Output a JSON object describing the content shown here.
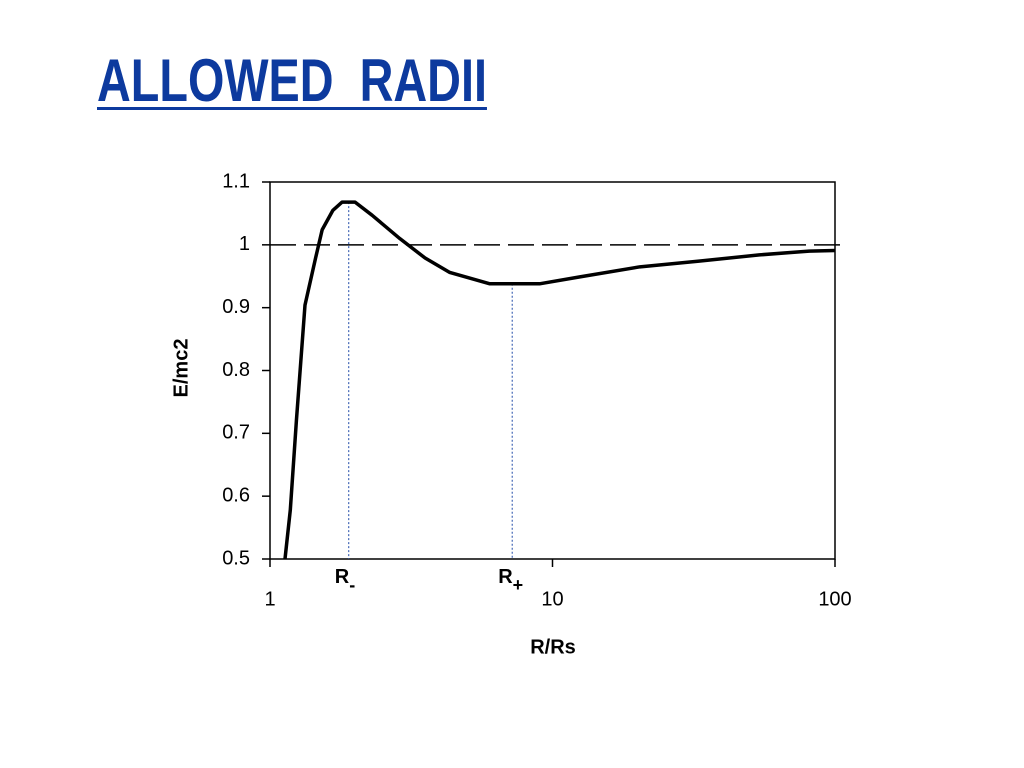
{
  "chart_data": {
    "type": "line",
    "title": "ALLOWED  RADII",
    "x_label": "R/Rs",
    "y_label": "E/mc2",
    "x_log": true,
    "xlim": [
      1,
      100
    ],
    "xticks": [
      1,
      10,
      100
    ],
    "ylim": [
      0.5,
      1.1
    ],
    "yticks": [
      0.5,
      0.6,
      0.7,
      0.8,
      0.9,
      1,
      1.1
    ],
    "reference_y": 1,
    "series": [
      {
        "color": "#000000",
        "x": [
          1.13,
          1.18,
          1.24,
          1.33,
          1.45,
          1.53,
          1.67,
          1.8,
          2.0,
          2.3,
          2.88,
          3.54,
          4.33,
          6.0,
          9.0,
          12.5,
          20.4,
          33,
          54,
          81,
          100
        ],
        "values": [
          0.5,
          0.578,
          0.72,
          0.904,
          0.979,
          1.024,
          1.055,
          1.068,
          1.068,
          1.047,
          1.01,
          0.979,
          0.956,
          0.938,
          0.938,
          0.949,
          0.965,
          0.974,
          0.984,
          0.99,
          0.991
        ]
      }
    ],
    "markers": [
      {
        "label": "R",
        "subscript": "-",
        "x": 1.9,
        "y": 1.068,
        "color": "#1f4aa8"
      },
      {
        "label": "R",
        "subscript": "+",
        "x": 7.2,
        "y": 0.938,
        "color": "#1f4aa8"
      }
    ]
  }
}
